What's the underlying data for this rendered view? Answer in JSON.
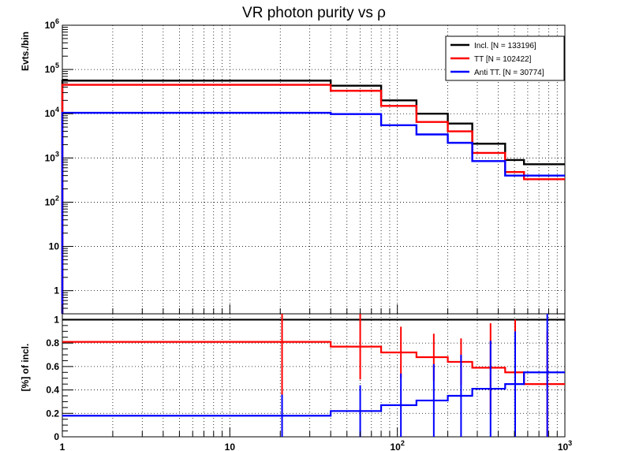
{
  "title": "VR photon purity vs ρ",
  "chart_data": [
    {
      "type": "line",
      "name": "top-panel",
      "ylabel": "Evts./bin",
      "yscale": "log",
      "xscale": "log",
      "xlim": [
        1,
        1000
      ],
      "ylim": [
        0.3,
        1000000
      ],
      "grid": true,
      "legend_position": "top-right",
      "bin_edges": [
        1,
        40,
        80,
        130,
        200,
        280,
        440,
        570,
        1000
      ],
      "series": [
        {
          "name": "Incl. [N = 133196]",
          "color": "#000000",
          "values": [
            56000,
            43000,
            20000,
            10000,
            6000,
            2100,
            900,
            720
          ]
        },
        {
          "name": "TT [N = 102422]",
          "color": "#ff0000",
          "values": [
            45000,
            33000,
            15000,
            6500,
            4000,
            1300,
            480,
            330
          ]
        },
        {
          "name": "Anti TT. [N = 30774]",
          "color": "#0000ff",
          "values": [
            10500,
            9800,
            5500,
            3400,
            2200,
            850,
            400,
            400
          ]
        }
      ],
      "y_tick_labels": [
        {
          "value": 1,
          "base": "1",
          "exp": ""
        },
        {
          "value": 10,
          "base": "10",
          "exp": ""
        },
        {
          "value": 100,
          "base": "10",
          "exp": "2"
        },
        {
          "value": 1000,
          "base": "10",
          "exp": "3"
        },
        {
          "value": 10000,
          "base": "10",
          "exp": "4"
        },
        {
          "value": 100000,
          "base": "10",
          "exp": "5"
        },
        {
          "value": 1000000,
          "base": "10",
          "exp": "6"
        }
      ]
    },
    {
      "type": "line",
      "name": "ratio-panel",
      "ylabel": "[%] of incl.",
      "yscale": "linear",
      "xscale": "log",
      "xlim": [
        1,
        1000
      ],
      "ylim": [
        0,
        1.05
      ],
      "grid": true,
      "bin_edges": [
        1,
        40,
        80,
        130,
        200,
        280,
        440,
        570,
        1000
      ],
      "bin_centers": [
        20.5,
        60,
        105,
        165,
        240,
        360,
        505,
        785
      ],
      "series": [
        {
          "name": "Incl.",
          "color": "#000000",
          "values": [
            1,
            1,
            1,
            1,
            1,
            1,
            1,
            1
          ]
        },
        {
          "name": "TT",
          "color": "#ff0000",
          "values": [
            0.81,
            0.77,
            0.72,
            0.68,
            0.64,
            0.59,
            0.55,
            0.45
          ],
          "errors": [
            0.81,
            0.28,
            0.22,
            0.2,
            0.2,
            0.38,
            0.45,
            0.45
          ]
        },
        {
          "name": "Anti TT.",
          "color": "#0000ff",
          "values": [
            0.18,
            0.22,
            0.27,
            0.31,
            0.35,
            0.41,
            0.45,
            0.55
          ],
          "errors": [
            0.18,
            0.22,
            0.27,
            0.31,
            0.35,
            0.41,
            0.45,
            0.55
          ]
        }
      ],
      "y_tick_labels": [
        {
          "value": 0,
          "label": "0"
        },
        {
          "value": 0.2,
          "label": "0.2"
        },
        {
          "value": 0.4,
          "label": "0.4"
        },
        {
          "value": 0.6,
          "label": "0.6"
        },
        {
          "value": 0.8,
          "label": "0.8"
        },
        {
          "value": 1,
          "label": "1"
        }
      ]
    }
  ],
  "x_tick_labels": [
    {
      "value": 1,
      "base": "1",
      "exp": ""
    },
    {
      "value": 10,
      "base": "10",
      "exp": ""
    },
    {
      "value": 100,
      "base": "10",
      "exp": "2"
    },
    {
      "value": 1000,
      "base": "10",
      "exp": "3"
    }
  ]
}
